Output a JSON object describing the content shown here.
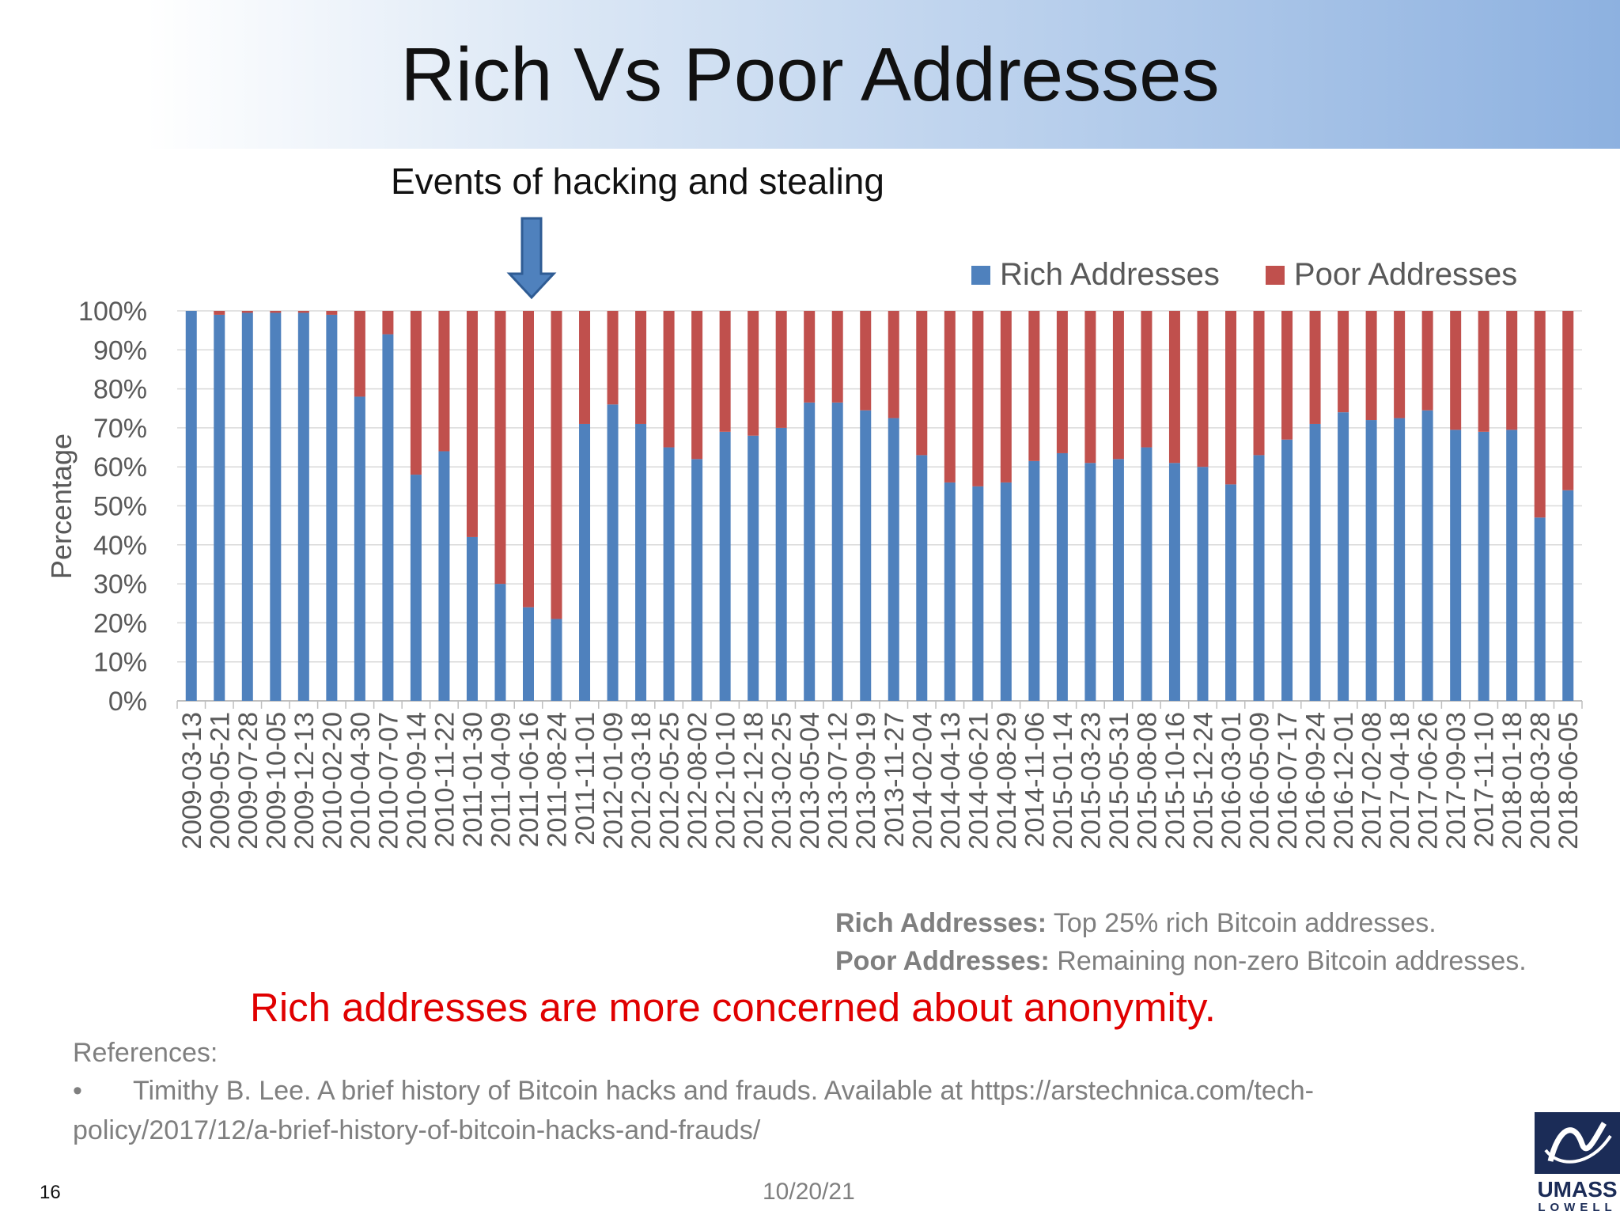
{
  "slide": {
    "title": "Rich Vs Poor Addresses",
    "annotation": "Events of hacking and stealing",
    "definitions": {
      "rich_label": "Rich Addresses:",
      "rich_text": " Top 25% rich Bitcoin addresses.",
      "poor_label": "Poor Addresses:",
      "poor_text": " Remaining non-zero Bitcoin addresses."
    },
    "conclusion": "Rich addresses are more concerned about anonymity.",
    "references_heading": "References:",
    "reference_bullet": "•",
    "reference_line1": "Timithy B. Lee. A brief history of Bitcoin hacks and frauds. Available at https://arstechnica.com/tech-",
    "reference_line2": "policy/2017/12/a-brief-history-of-bitcoin-hacks-and-frauds/",
    "slide_number": "16",
    "date": "10/20/21",
    "logo_text_1": "UMASS",
    "logo_text_2": "LOWELL"
  },
  "colors": {
    "rich": "#4f81bd",
    "poor": "#c0504d",
    "accent_red": "#e00000",
    "arrow": "#4f81bd"
  },
  "chart_data": {
    "type": "bar",
    "stacked": true,
    "ylabel": "Percentage",
    "ylim": [
      0,
      100
    ],
    "yticks": [
      "0%",
      "10%",
      "20%",
      "30%",
      "40%",
      "50%",
      "60%",
      "70%",
      "80%",
      "90%",
      "100%"
    ],
    "grid": true,
    "legend_position": "top-right",
    "categories": [
      "2009-03-13",
      "2009-05-21",
      "2009-07-28",
      "2009-10-05",
      "2009-12-13",
      "2010-02-20",
      "2010-04-30",
      "2010-07-07",
      "2010-09-14",
      "2010-11-22",
      "2011-01-30",
      "2011-04-09",
      "2011-06-16",
      "2011-08-24",
      "2011-11-01",
      "2012-01-09",
      "2012-03-18",
      "2012-05-25",
      "2012-08-02",
      "2012-10-10",
      "2012-12-18",
      "2013-02-25",
      "2013-05-04",
      "2013-07-12",
      "2013-09-19",
      "2013-11-27",
      "2014-02-04",
      "2014-04-13",
      "2014-06-21",
      "2014-08-29",
      "2014-11-06",
      "2015-01-14",
      "2015-03-23",
      "2015-05-31",
      "2015-08-08",
      "2015-10-16",
      "2015-12-24",
      "2016-03-01",
      "2016-05-09",
      "2016-07-17",
      "2016-09-24",
      "2016-12-01",
      "2017-02-08",
      "2017-04-18",
      "2017-06-26",
      "2017-09-03",
      "2017-11-10",
      "2018-01-18",
      "2018-03-28",
      "2018-06-05"
    ],
    "series": [
      {
        "name": "Rich Addresses",
        "values": [
          100,
          99,
          99.5,
          99.5,
          99.5,
          99,
          78,
          94,
          58,
          64,
          42,
          30,
          24,
          21,
          71,
          76,
          71,
          65,
          62,
          69,
          68,
          70,
          76.5,
          76.5,
          74.5,
          72.5,
          63,
          56,
          55,
          56,
          61.5,
          63.5,
          61,
          62,
          65,
          61,
          60,
          55.5,
          63,
          67,
          71,
          74,
          72,
          72.5,
          74.5,
          69.5,
          69,
          69.5,
          47,
          54
        ]
      },
      {
        "name": "Poor Addresses",
        "values": [
          0,
          1,
          0.5,
          0.5,
          0.5,
          1,
          22,
          6,
          42,
          36,
          58,
          70,
          76,
          79,
          29,
          24,
          29,
          35,
          38,
          31,
          32,
          30,
          23.5,
          23.5,
          25.5,
          27.5,
          37,
          44,
          45,
          44,
          38.5,
          36.5,
          39,
          38,
          35,
          39,
          40,
          44.5,
          37,
          33,
          29,
          26,
          28,
          27.5,
          25.5,
          30.5,
          31,
          30.5,
          53,
          46
        ]
      }
    ]
  }
}
